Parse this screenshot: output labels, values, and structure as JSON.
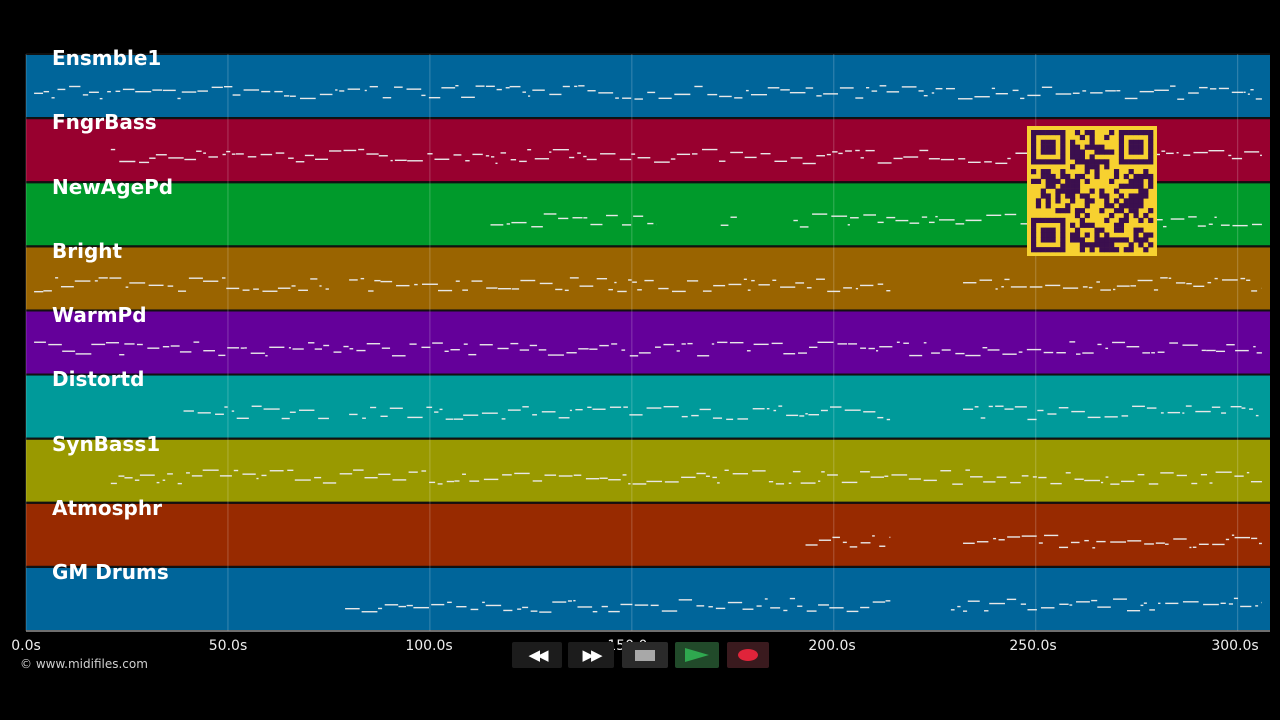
{
  "tracks": [
    {
      "name": "Ensmble1",
      "color": "#00659a"
    },
    {
      "name": "FngrBass",
      "color": "#98002f"
    },
    {
      "name": "NewAgePd",
      "color": "#009a2b"
    },
    {
      "name": "Bright",
      "color": "#9a6400"
    },
    {
      "name": "WarmPd",
      "color": "#64009a"
    },
    {
      "name": "Distortd",
      "color": "#009a9a"
    },
    {
      "name": "SynBass1",
      "color": "#999900"
    },
    {
      "name": "Atmosphr",
      "color": "#982a00"
    },
    {
      "name": "GM Drums",
      "color": "#00659a"
    }
  ],
  "timeline": {
    "duration_s": 308,
    "ticks": [
      {
        "label": "0.0s",
        "t": 0
      },
      {
        "label": "50.0s",
        "t": 50
      },
      {
        "label": "100.0s",
        "t": 100
      },
      {
        "label": "150.0s",
        "t": 150
      },
      {
        "label": "200.0s",
        "t": 200
      },
      {
        "label": "250.0s",
        "t": 250
      },
      {
        "label": "300.0s",
        "t": 300
      }
    ]
  },
  "copyright": "© www.midifiles.com",
  "transport": {
    "rewind_icon": "rewind-icon",
    "fast_forward_icon": "fast-forward-icon",
    "stop_icon": "stop-icon",
    "play_icon": "play-icon",
    "record_icon": "record-icon",
    "play_color": "#2fa84f",
    "record_color": "#e0243a"
  },
  "qr_color": "#f7d130",
  "note_color": "#e8e8e8"
}
